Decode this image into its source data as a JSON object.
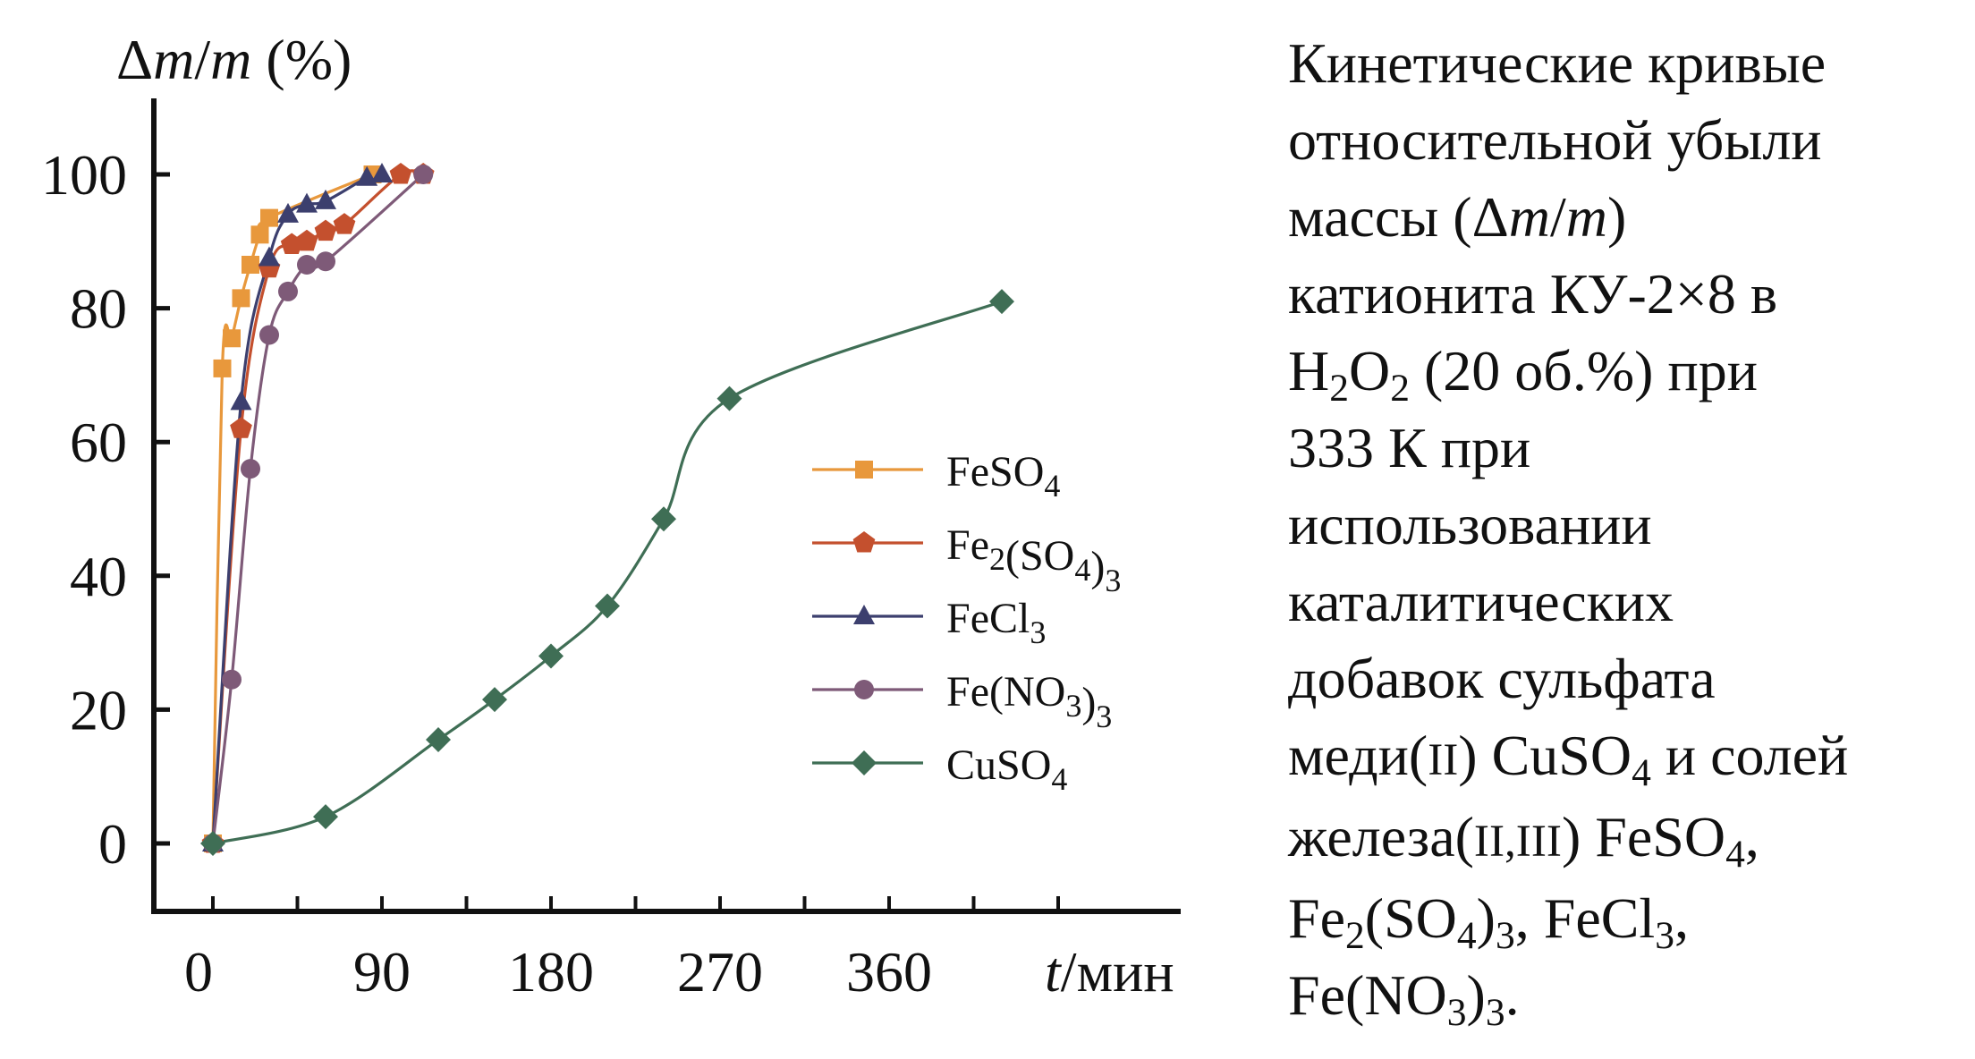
{
  "chart_data": {
    "type": "line",
    "ylabel": "Δm/m (%)",
    "xlabel": "t/мин",
    "x_ticks": [
      "0",
      "90",
      "180",
      "270",
      "360"
    ],
    "y_ticks": [
      "0",
      "20",
      "40",
      "60",
      "80",
      "100"
    ],
    "xlim": [
      -30,
      460
    ],
    "ylim": [
      -10,
      112
    ],
    "grid": false,
    "legend_position": "right-center",
    "series": [
      {
        "name": "FeSO4",
        "color": "#E8983C",
        "marker": "square",
        "x": [
          0,
          5,
          10,
          15,
          20,
          25,
          30,
          85
        ],
        "y": [
          0,
          71,
          75.5,
          81.5,
          86.5,
          91,
          93.5,
          100
        ]
      },
      {
        "name": "Fe2(SO4)3",
        "color": "#C4502E",
        "marker": "pentagon",
        "x": [
          0,
          15,
          30,
          42,
          50,
          60,
          70,
          100,
          112
        ],
        "y": [
          0,
          62,
          86,
          89.5,
          90,
          91.5,
          92.5,
          100,
          100
        ]
      },
      {
        "name": "FeCl3",
        "color": "#3C3F6E",
        "marker": "triangle",
        "x": [
          0,
          15,
          30,
          40,
          50,
          60,
          82,
          90
        ],
        "y": [
          0,
          66,
          87.5,
          94,
          95.5,
          96,
          99.5,
          100
        ]
      },
      {
        "name": "Fe(NO3)3",
        "color": "#7E5A78",
        "marker": "circle",
        "x": [
          0,
          10,
          20,
          30,
          40,
          50,
          60,
          112
        ],
        "y": [
          0,
          24.5,
          56,
          76,
          82.5,
          86.5,
          87,
          100
        ]
      },
      {
        "name": "CuSO4",
        "color": "#3F6E55",
        "marker": "diamond",
        "x": [
          0,
          60,
          120,
          150,
          180,
          210,
          240,
          275,
          420
        ],
        "y": [
          0,
          4,
          15.5,
          21.5,
          28,
          35.5,
          48.5,
          66.5,
          81
        ]
      }
    ]
  },
  "legend": [
    {
      "base": "FeSO",
      "sub": "4",
      "rest": ""
    },
    {
      "base": "Fe",
      "sub": "2",
      "rest": "(SO",
      "sub2": "4",
      "rest2": ")",
      "sub3": "3"
    },
    {
      "base": "FeCl",
      "sub": "3",
      "rest": ""
    },
    {
      "base": "Fe(NO",
      "sub": "3",
      "rest": ")",
      "sub2": "3"
    },
    {
      "base": "CuSO",
      "sub": "4",
      "rest": ""
    }
  ],
  "caption": {
    "l1": "Кинетические кривые",
    "l2": "относительной убыли",
    "l3a": "массы (Δ",
    "l3b": "m",
    "l3c": "/",
    "l3d": "m",
    "l3e": ")",
    "l4": "катионита КУ-2×8 в",
    "l5a": "H",
    "l5b": "2",
    "l5c": "O",
    "l5d": "2",
    "l5e": " (20 об.%) при",
    "l6": "333 К при",
    "l7": "использовании",
    "l8": "каталитических",
    "l9": "добавок сульфата",
    "l10a": "меди(",
    "l10b": "II",
    "l10c": ") CuSO",
    "l10d": "4",
    "l10e": " и солей",
    "l11a": "железа(",
    "l11b": "II,III",
    "l11c": ") FeSO",
    "l11d": "4",
    "l11e": ",",
    "l12a": "Fe",
    "l12b": "2",
    "l12c": "(SO",
    "l12d": "4",
    "l12e": ")",
    "l12f": "3",
    "l12g": ", FeCl",
    "l12h": "3",
    "l12i": ",",
    "l13a": "Fe(NO",
    "l13b": "3",
    "l13c": ")",
    "l13d": "3",
    "l13e": "."
  }
}
